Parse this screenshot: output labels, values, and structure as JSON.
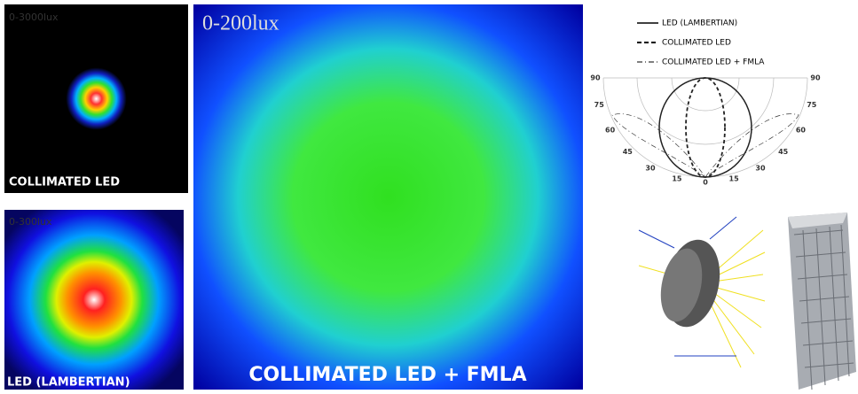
{
  "panels": [
    {
      "range": "0-3000lux",
      "label": "COLLIMATED LED"
    },
    {
      "range": "0-300lux",
      "label": "LED (LAMBERTIAN)"
    },
    {
      "range": "0-200lux",
      "label": "COLLIMATED LED + FMLA"
    }
  ],
  "polar_plot": {
    "legend": [
      "LED (LAMBERTIAN)",
      "COLLIMATED LED",
      "COLLIMATED LED + FMLA"
    ],
    "angle_ticks_left": [
      90,
      75,
      60,
      45,
      30,
      15,
      0
    ],
    "angle_ticks_right": [
      15,
      30,
      45,
      60,
      75,
      90
    ]
  }
}
